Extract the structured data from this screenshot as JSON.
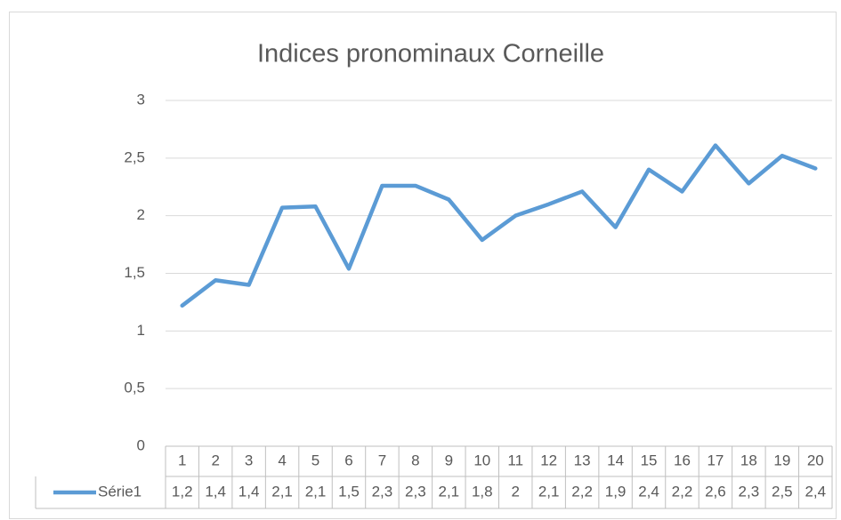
{
  "chart_data": {
    "type": "line",
    "title": "Indices pronominaux Corneille",
    "categories": [
      "1",
      "2",
      "3",
      "4",
      "5",
      "6",
      "7",
      "8",
      "9",
      "10",
      "11",
      "12",
      "13",
      "14",
      "15",
      "16",
      "17",
      "18",
      "19",
      "20"
    ],
    "series": [
      {
        "name": "Série1",
        "color": "#5b9bd5",
        "values": [
          1.22,
          1.44,
          1.4,
          2.07,
          2.08,
          1.54,
          2.26,
          2.26,
          2.14,
          1.79,
          2.0,
          2.1,
          2.21,
          1.9,
          2.4,
          2.21,
          2.61,
          2.28,
          2.52,
          2.41
        ],
        "value_labels": [
          "1,2",
          "1,4",
          "1,4",
          "2,1",
          "2,1",
          "1,5",
          "2,3",
          "2,3",
          "2,1",
          "1,8",
          "2",
          "2,1",
          "2,2",
          "1,9",
          "2,4",
          "2,2",
          "2,6",
          "2,3",
          "2,5",
          "2,4"
        ]
      }
    ],
    "ylim": [
      0,
      3
    ],
    "yticks": [
      0,
      {
        "value": 0.5,
        "label": "0,5"
      },
      1,
      {
        "value": 1.5,
        "label": "1,5"
      },
      2,
      {
        "value": 2.5,
        "label": "2,5"
      },
      3
    ],
    "grid": true,
    "legend": "bottom"
  }
}
